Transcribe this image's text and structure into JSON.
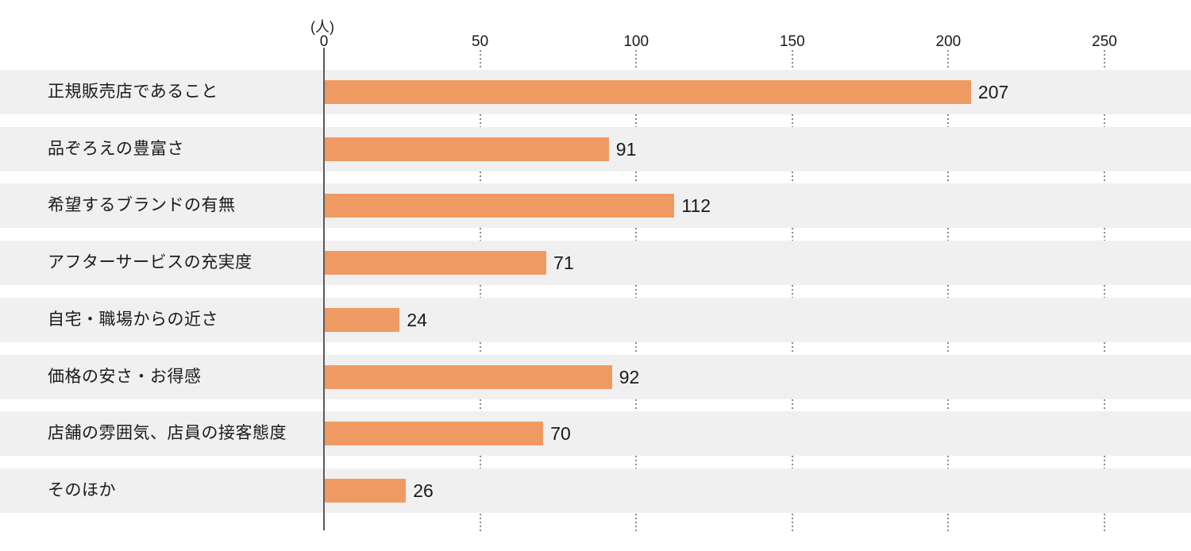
{
  "chart_data": {
    "type": "bar",
    "orientation": "horizontal",
    "title": "",
    "unit_label": "(人)",
    "categories": [
      "正規販売店であること",
      "品ぞろえの豊富さ",
      "希望するブランドの有無",
      "アフターサービスの充実度",
      "自宅・職場からの近さ",
      "価格の安さ・お得感",
      "店舗の雰囲気、店員の接客態度",
      "そのほか"
    ],
    "values": [
      207,
      91,
      112,
      71,
      24,
      92,
      70,
      26
    ],
    "ticks": [
      0,
      50,
      100,
      150,
      200,
      250
    ],
    "xlim": [
      0,
      278
    ],
    "grid": "dotted-vertical-in-row-gaps",
    "legend": "none",
    "colors": {
      "bar": "#F09A63",
      "row_stripe": "#F0F0F0",
      "background": "#FFFFFF",
      "text": "#1A1A1A",
      "axis_line": "#5A5A5A",
      "grid_dots": "#8A8A8A"
    }
  }
}
